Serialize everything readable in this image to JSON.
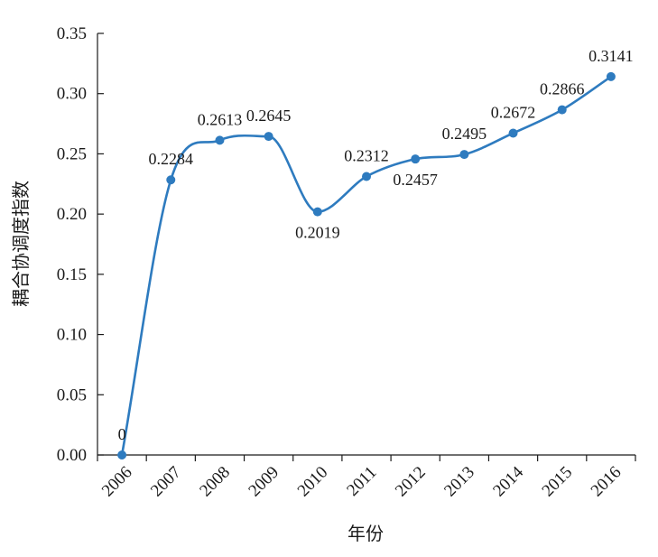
{
  "chart_data": {
    "type": "line",
    "xlabel": "年份",
    "ylabel": "耦合协调度指数",
    "ylim": [
      0,
      0.35
    ],
    "yticks": [
      "0.00",
      "0.05",
      "0.10",
      "0.15",
      "0.20",
      "0.25",
      "0.30",
      "0.35"
    ],
    "categories": [
      "2006",
      "2007",
      "2008",
      "2009",
      "2010",
      "2011",
      "2012",
      "2013",
      "2014",
      "2015",
      "2016"
    ],
    "series": [
      {
        "values": [
          0,
          0.2284,
          0.2613,
          0.2645,
          0.2019,
          0.2312,
          0.2457,
          0.2495,
          0.2672,
          0.2866,
          0.3141
        ],
        "labels": [
          "0",
          "0.2284",
          "0.2613",
          "0.2645",
          "0.2019",
          "0.2312",
          "0.2457",
          "0.2495",
          "0.2672",
          "0.2866",
          "0.3141"
        ],
        "label_position": [
          "above",
          "above",
          "above",
          "above",
          "below",
          "above",
          "below",
          "above",
          "above",
          "above",
          "above"
        ]
      }
    ],
    "line_color": "#2e7bbf",
    "marker_color": "#2e7bbf",
    "grid": false,
    "legend": "none",
    "smooth": true
  }
}
